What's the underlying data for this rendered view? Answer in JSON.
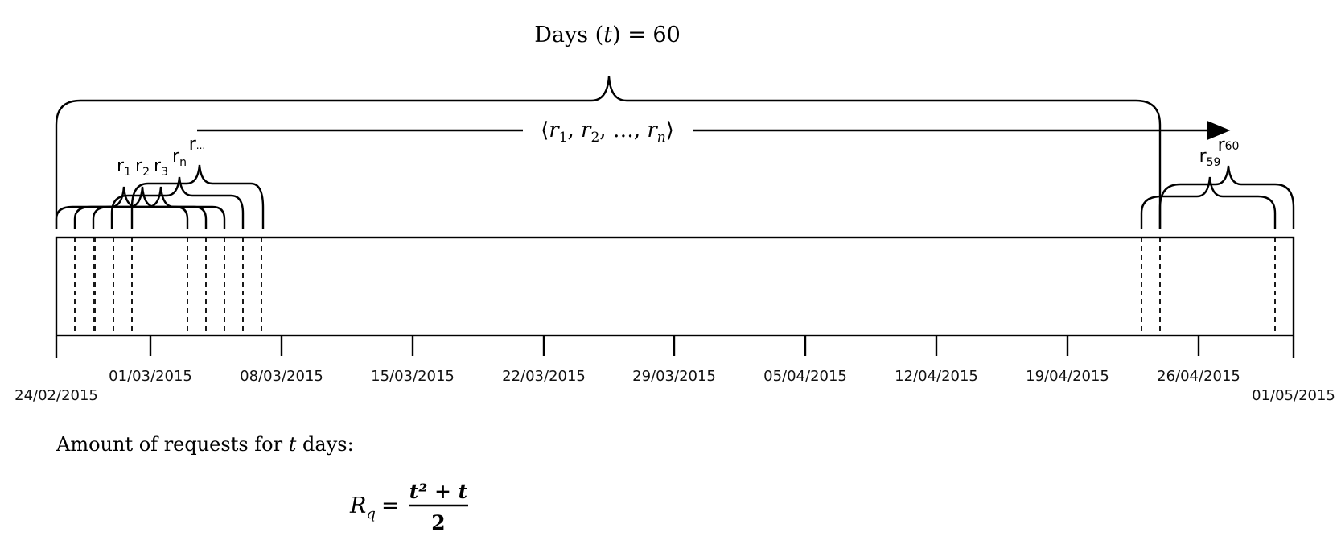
{
  "title": {
    "prefix": "Days",
    "var": "t",
    "value": "60"
  },
  "sequence": {
    "items": [
      "r1",
      "r2",
      "…",
      "rn"
    ]
  },
  "request_labels": [
    {
      "base": "r",
      "sub": "1"
    },
    {
      "base": "r",
      "sub": "2"
    },
    {
      "base": "r",
      "sub": "3"
    },
    {
      "base": "r",
      "sub": "n"
    },
    {
      "base": "r",
      "sub": "..."
    },
    {
      "base": "r",
      "sub": "59"
    },
    {
      "base": "r",
      "sub": "60"
    }
  ],
  "axis": {
    "start_label": "24/02/2015",
    "end_label": "01/05/2015",
    "tick_labels": [
      "01/03/2015",
      "08/03/2015",
      "15/03/2015",
      "22/03/2015",
      "29/03/2015",
      "05/04/2015",
      "12/04/2015",
      "19/04/2015",
      "26/04/2015"
    ]
  },
  "caption": {
    "text": "Amount of requests for",
    "var": "t",
    "suffix": "days:"
  },
  "formula": {
    "lhs": "R",
    "lhs_sub": "q",
    "numerator": "t² + t",
    "denominator": "2"
  }
}
